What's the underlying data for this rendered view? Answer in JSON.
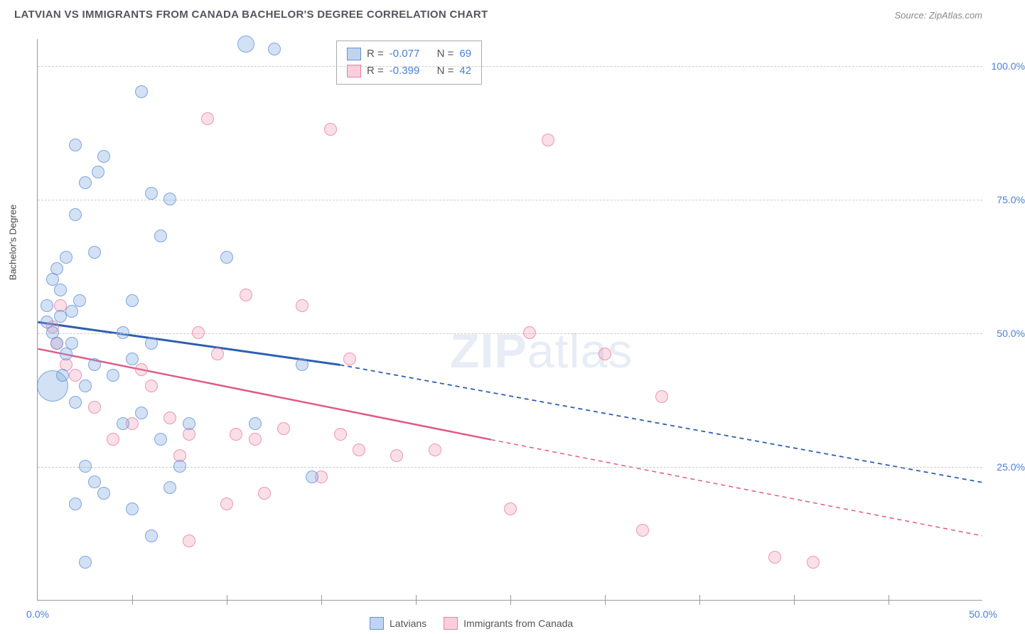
{
  "title": "LATVIAN VS IMMIGRANTS FROM CANADA BACHELOR'S DEGREE CORRELATION CHART",
  "source": "Source: ZipAtlas.com",
  "watermark_zip": "ZIP",
  "watermark_atlas": "atlas",
  "chart": {
    "type": "scatter",
    "xlim": [
      0,
      50
    ],
    "ylim": [
      0,
      105
    ],
    "y_ticks": [
      25,
      50,
      75,
      100
    ],
    "y_tick_labels": [
      "25.0%",
      "50.0%",
      "75.0%",
      "100.0%"
    ],
    "x_ticks": [
      0,
      25,
      50
    ],
    "x_tick_labels": [
      "0.0%",
      "",
      "50.0%"
    ],
    "x_minor_ticks": [
      5,
      10,
      15,
      20,
      25,
      30,
      35,
      40,
      45
    ],
    "y_axis_title": "Bachelor's Degree",
    "background_color": "#ffffff",
    "grid_color": "#cccccc"
  },
  "series": {
    "blue": {
      "label": "Latvians",
      "color_fill": "rgba(130,170,225,0.35)",
      "color_stroke": "rgba(90,140,210,0.7)",
      "r_stat": "-0.077",
      "n_stat": "69",
      "line": {
        "x1": 0,
        "y1": 52,
        "x2": 16,
        "y2": 44,
        "x2_dash": 50,
        "y2_dash": 22,
        "color": "#2d5fb0",
        "width": 3
      },
      "points": [
        {
          "x": 0.8,
          "y": 40,
          "r": 22
        },
        {
          "x": 0.5,
          "y": 52,
          "r": 9
        },
        {
          "x": 0.5,
          "y": 55,
          "r": 9
        },
        {
          "x": 0.8,
          "y": 50,
          "r": 9
        },
        {
          "x": 1.2,
          "y": 53,
          "r": 9
        },
        {
          "x": 1.0,
          "y": 48,
          "r": 9
        },
        {
          "x": 1.5,
          "y": 46,
          "r": 9
        },
        {
          "x": 1.2,
          "y": 58,
          "r": 9
        },
        {
          "x": 1.0,
          "y": 62,
          "r": 9
        },
        {
          "x": 1.5,
          "y": 64,
          "r": 9
        },
        {
          "x": 0.8,
          "y": 60,
          "r": 9
        },
        {
          "x": 2.0,
          "y": 72,
          "r": 9
        },
        {
          "x": 2.5,
          "y": 78,
          "r": 9
        },
        {
          "x": 2.0,
          "y": 85,
          "r": 9
        },
        {
          "x": 3.5,
          "y": 83,
          "r": 9
        },
        {
          "x": 3.2,
          "y": 80,
          "r": 9
        },
        {
          "x": 3.0,
          "y": 65,
          "r": 9
        },
        {
          "x": 5.5,
          "y": 95,
          "r": 9
        },
        {
          "x": 6.0,
          "y": 76,
          "r": 9
        },
        {
          "x": 6.5,
          "y": 68,
          "r": 9
        },
        {
          "x": 7.0,
          "y": 75,
          "r": 9
        },
        {
          "x": 5.0,
          "y": 56,
          "r": 9
        },
        {
          "x": 4.5,
          "y": 50,
          "r": 9
        },
        {
          "x": 3.0,
          "y": 44,
          "r": 9
        },
        {
          "x": 2.5,
          "y": 40,
          "r": 9
        },
        {
          "x": 2.0,
          "y": 37,
          "r": 9
        },
        {
          "x": 4.0,
          "y": 42,
          "r": 9
        },
        {
          "x": 5.0,
          "y": 45,
          "r": 9
        },
        {
          "x": 6.0,
          "y": 48,
          "r": 9
        },
        {
          "x": 2.5,
          "y": 25,
          "r": 9
        },
        {
          "x": 3.0,
          "y": 22,
          "r": 9
        },
        {
          "x": 3.5,
          "y": 20,
          "r": 9
        },
        {
          "x": 2.0,
          "y": 18,
          "r": 9
        },
        {
          "x": 5.0,
          "y": 17,
          "r": 9
        },
        {
          "x": 6.0,
          "y": 12,
          "r": 9
        },
        {
          "x": 2.5,
          "y": 7,
          "r": 9
        },
        {
          "x": 4.5,
          "y": 33,
          "r": 9
        },
        {
          "x": 5.5,
          "y": 35,
          "r": 9
        },
        {
          "x": 7.0,
          "y": 21,
          "r": 9
        },
        {
          "x": 7.5,
          "y": 25,
          "r": 9
        },
        {
          "x": 8.0,
          "y": 33,
          "r": 9
        },
        {
          "x": 6.5,
          "y": 30,
          "r": 9
        },
        {
          "x": 10.0,
          "y": 64,
          "r": 9
        },
        {
          "x": 11.0,
          "y": 104,
          "r": 12
        },
        {
          "x": 12.5,
          "y": 103,
          "r": 9
        },
        {
          "x": 14.0,
          "y": 44,
          "r": 9
        },
        {
          "x": 14.5,
          "y": 23,
          "r": 9
        },
        {
          "x": 11.5,
          "y": 33,
          "r": 9
        },
        {
          "x": 1.8,
          "y": 54,
          "r": 9
        },
        {
          "x": 2.2,
          "y": 56,
          "r": 9
        },
        {
          "x": 1.3,
          "y": 42,
          "r": 9
        },
        {
          "x": 1.8,
          "y": 48,
          "r": 9
        }
      ]
    },
    "pink": {
      "label": "Immigrants from Canada",
      "color_fill": "rgba(240,150,175,0.3)",
      "color_stroke": "rgba(230,120,155,0.7)",
      "r_stat": "-0.399",
      "n_stat": "42",
      "line": {
        "x1": 0,
        "y1": 47,
        "x2": 24,
        "y2": 30,
        "x2_dash": 50,
        "y2_dash": 12,
        "color": "#e05a88",
        "width": 2.5
      },
      "points": [
        {
          "x": 0.8,
          "y": 51,
          "r": 9
        },
        {
          "x": 1.0,
          "y": 48,
          "r": 9
        },
        {
          "x": 1.2,
          "y": 55,
          "r": 9
        },
        {
          "x": 1.5,
          "y": 44,
          "r": 9
        },
        {
          "x": 3.0,
          "y": 36,
          "r": 9
        },
        {
          "x": 4.0,
          "y": 30,
          "r": 9
        },
        {
          "x": 5.0,
          "y": 33,
          "r": 9
        },
        {
          "x": 5.5,
          "y": 43,
          "r": 9
        },
        {
          "x": 6.0,
          "y": 40,
          "r": 9
        },
        {
          "x": 7.0,
          "y": 34,
          "r": 9
        },
        {
          "x": 7.5,
          "y": 27,
          "r": 9
        },
        {
          "x": 8.0,
          "y": 31,
          "r": 9
        },
        {
          "x": 8.5,
          "y": 50,
          "r": 9
        },
        {
          "x": 9.0,
          "y": 90,
          "r": 9
        },
        {
          "x": 9.5,
          "y": 46,
          "r": 9
        },
        {
          "x": 10.0,
          "y": 18,
          "r": 9
        },
        {
          "x": 10.5,
          "y": 31,
          "r": 9
        },
        {
          "x": 8.0,
          "y": 11,
          "r": 9
        },
        {
          "x": 11.0,
          "y": 57,
          "r": 9
        },
        {
          "x": 11.5,
          "y": 30,
          "r": 9
        },
        {
          "x": 12.0,
          "y": 20,
          "r": 9
        },
        {
          "x": 13.0,
          "y": 32,
          "r": 9
        },
        {
          "x": 14.0,
          "y": 55,
          "r": 9
        },
        {
          "x": 15.0,
          "y": 23,
          "r": 9
        },
        {
          "x": 15.5,
          "y": 88,
          "r": 9
        },
        {
          "x": 16.0,
          "y": 31,
          "r": 9
        },
        {
          "x": 16.5,
          "y": 45,
          "r": 9
        },
        {
          "x": 17.0,
          "y": 28,
          "r": 9
        },
        {
          "x": 19.0,
          "y": 27,
          "r": 9
        },
        {
          "x": 21.0,
          "y": 28,
          "r": 9
        },
        {
          "x": 25.0,
          "y": 17,
          "r": 9
        },
        {
          "x": 26.0,
          "y": 50,
          "r": 9
        },
        {
          "x": 27.0,
          "y": 86,
          "r": 9
        },
        {
          "x": 30.0,
          "y": 46,
          "r": 9
        },
        {
          "x": 32.0,
          "y": 13,
          "r": 9
        },
        {
          "x": 33.0,
          "y": 38,
          "r": 9
        },
        {
          "x": 39.0,
          "y": 8,
          "r": 9
        },
        {
          "x": 41.0,
          "y": 7,
          "r": 9
        },
        {
          "x": 2.0,
          "y": 42,
          "r": 9
        }
      ]
    }
  },
  "stats_box": {
    "r_label": "R =",
    "n_label": "N ="
  },
  "legend": {
    "blue": "Latvians",
    "pink": "Immigrants from Canada"
  }
}
